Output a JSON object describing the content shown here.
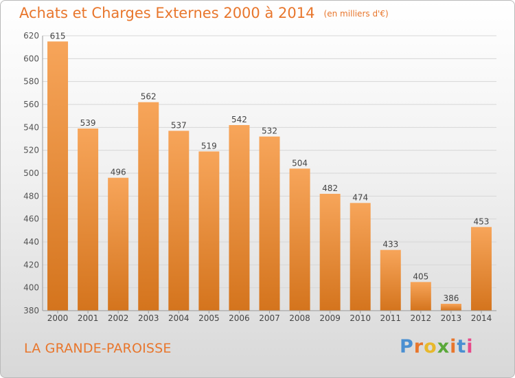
{
  "header": {
    "title": "Achats et Charges Externes 2000 à 2014",
    "unit": "(en milliers d'€)"
  },
  "footer": {
    "commune": "LA GRANDE-PAROISSE",
    "brand_letters": [
      "P",
      "r",
      "o",
      "x",
      "i",
      "t",
      "i"
    ],
    "brand_colors": [
      "#4a8fd1",
      "#e8762c",
      "#e8b82c",
      "#5aa83a",
      "#e8762c",
      "#4a8fd1",
      "#e84a8a"
    ]
  },
  "colors": {
    "accent": "#e8762c",
    "bar_light": "#f7a55a",
    "bar_dark": "#d4741d",
    "grid": "#d6d6d6"
  },
  "chart_data": {
    "type": "bar",
    "title": "Achats et Charges Externes 2000 à 2014",
    "categories": [
      "2000",
      "2001",
      "2002",
      "2003",
      "2004",
      "2005",
      "2006",
      "2007",
      "2008",
      "2009",
      "2010",
      "2011",
      "2012",
      "2013",
      "2014"
    ],
    "values": [
      615,
      539,
      496,
      562,
      537,
      519,
      542,
      532,
      504,
      482,
      474,
      433,
      405,
      386,
      453
    ],
    "ylim": [
      380,
      620
    ],
    "yticks": [
      380,
      400,
      420,
      440,
      460,
      480,
      500,
      520,
      540,
      560,
      580,
      600,
      620
    ],
    "grid": true,
    "data_labels": true
  }
}
